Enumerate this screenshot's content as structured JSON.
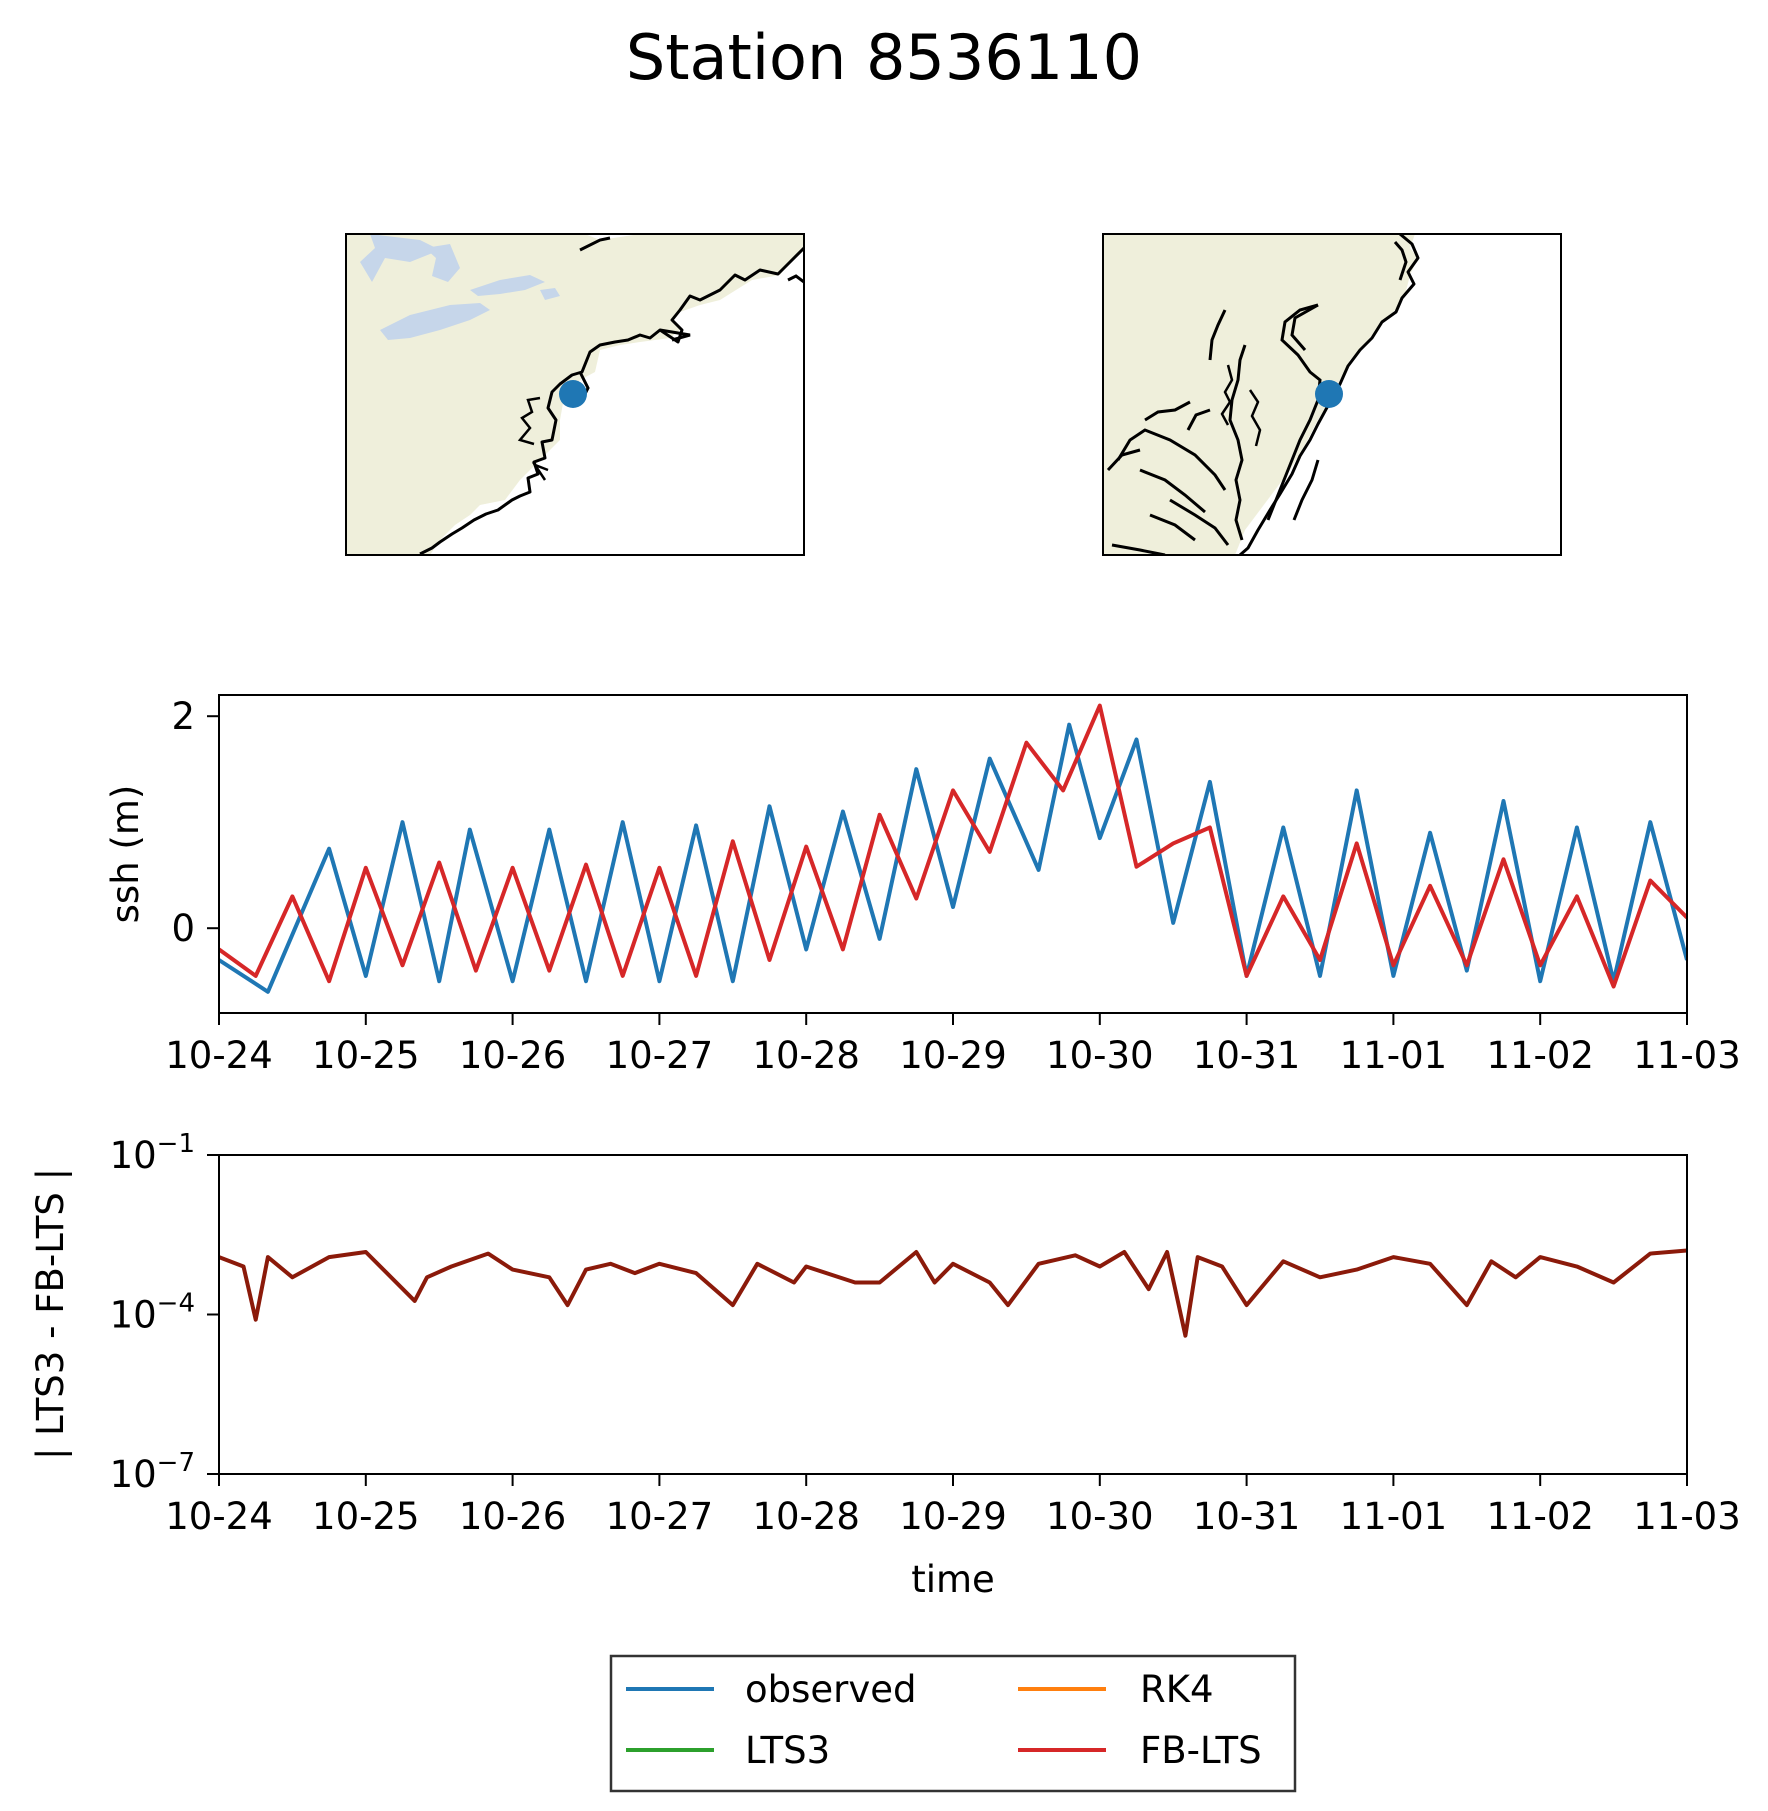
{
  "figure": {
    "title": "Station 8536110"
  },
  "colors": {
    "observed": "#1f77b4",
    "RK4": "#ff7f0e",
    "LTS3": "#2ca02c",
    "FB-LTS": "#d62728",
    "difference": "#8b1a0a",
    "land": "#efefdb",
    "lakes": "#c6d6ea"
  },
  "maps": [
    {
      "name": "overview",
      "station_marker": "blue-dot",
      "coastline": "northeastern US"
    },
    {
      "name": "zoom",
      "station_marker": "blue-dot",
      "coastline": "Delaware / Chesapeake bays"
    }
  ],
  "chart_data": [
    {
      "type": "line",
      "ylabel": "ssh (m)",
      "xlabel": "",
      "ylim": [
        -0.8,
        2.2
      ],
      "yticks": [
        0,
        2
      ],
      "ytick_labels": [
        "0",
        "2"
      ],
      "xticks": [
        "10-24",
        "10-25",
        "10-26",
        "10-27",
        "10-28",
        "10-29",
        "10-30",
        "10-31",
        "11-01",
        "11-02",
        "11-03"
      ],
      "grid": false,
      "series": [
        {
          "name": "observed",
          "color": "#1f77b4",
          "x": [
            "10-24 00:00",
            "10-24 08:00",
            "10-24 18:00",
            "10-25 00:00",
            "10-25 06:00",
            "10-25 12:00",
            "10-25 17:00",
            "10-26 00:00",
            "10-26 06:00",
            "10-26 12:00",
            "10-26 18:00",
            "10-27 00:00",
            "10-27 06:00",
            "10-27 12:00",
            "10-27 18:00",
            "10-28 00:00",
            "10-28 06:00",
            "10-28 12:00",
            "10-28 18:00",
            "10-29 00:00",
            "10-29 06:00",
            "10-29 14:00",
            "10-29 19:00",
            "10-30 00:00",
            "10-30 06:00",
            "10-30 12:00",
            "10-30 18:00",
            "10-31 00:00",
            "10-31 06:00",
            "10-31 12:00",
            "10-31 18:00",
            "11-01 00:00",
            "11-01 06:00",
            "11-01 12:00",
            "11-01 18:00",
            "11-02 00:00",
            "11-02 06:00",
            "11-02 12:00",
            "11-02 18:00",
            "11-03 00:00"
          ],
          "y": [
            -0.3,
            -0.6,
            0.75,
            -0.45,
            1.0,
            -0.5,
            0.93,
            -0.5,
            0.93,
            -0.5,
            1.0,
            -0.5,
            0.97,
            -0.5,
            1.15,
            -0.2,
            1.1,
            -0.1,
            1.5,
            0.2,
            1.6,
            0.55,
            1.92,
            0.85,
            1.78,
            0.05,
            1.38,
            -0.45,
            0.95,
            -0.45,
            1.3,
            -0.45,
            0.9,
            -0.4,
            1.2,
            -0.5,
            0.95,
            -0.5,
            1.0,
            -0.3
          ]
        },
        {
          "name": "FB-LTS",
          "color": "#d62728",
          "x": [
            "10-24 00:00",
            "10-24 06:00",
            "10-24 12:00",
            "10-24 18:00",
            "10-25 00:00",
            "10-25 06:00",
            "10-25 12:00",
            "10-25 18:00",
            "10-26 00:00",
            "10-26 06:00",
            "10-26 12:00",
            "10-26 18:00",
            "10-27 00:00",
            "10-27 06:00",
            "10-27 12:00",
            "10-27 18:00",
            "10-28 00:00",
            "10-28 06:00",
            "10-28 12:00",
            "10-28 18:00",
            "10-29 00:00",
            "10-29 06:00",
            "10-29 12:00",
            "10-29 18:00",
            "10-30 00:00",
            "10-30 06:00",
            "10-30 12:00",
            "10-30 18:00",
            "10-31 00:00",
            "10-31 06:00",
            "10-31 12:00",
            "10-31 18:00",
            "11-01 00:00",
            "11-01 06:00",
            "11-01 12:00",
            "11-01 18:00",
            "11-02 00:00",
            "11-02 06:00",
            "11-02 12:00",
            "11-02 18:00",
            "11-03 00:00"
          ],
          "y": [
            -0.2,
            -0.45,
            0.3,
            -0.5,
            0.57,
            -0.35,
            0.62,
            -0.4,
            0.57,
            -0.4,
            0.6,
            -0.45,
            0.57,
            -0.45,
            0.82,
            -0.3,
            0.77,
            -0.2,
            1.07,
            0.28,
            1.3,
            0.72,
            1.75,
            1.3,
            2.1,
            0.58,
            0.8,
            0.95,
            -0.45,
            0.3,
            -0.3,
            0.8,
            -0.35,
            0.4,
            -0.35,
            0.65,
            -0.35,
            0.3,
            -0.55,
            0.45,
            0.1
          ]
        },
        {
          "name": "RK4",
          "color": "#ff7f0e",
          "x": [],
          "y": []
        },
        {
          "name": "LTS3",
          "color": "#2ca02c",
          "x": [],
          "y": []
        }
      ]
    },
    {
      "type": "line",
      "ylabel": "| LTS3 - FB-LTS |",
      "xlabel": "time",
      "yscale": "log",
      "ylim": [
        1e-07,
        0.1
      ],
      "yticks": [
        1e-07,
        0.0001,
        0.1
      ],
      "ytick_labels": [
        {
          "base": "10",
          "exp": "−7"
        },
        {
          "base": "10",
          "exp": "−4"
        },
        {
          "base": "10",
          "exp": "−1"
        }
      ],
      "xticks": [
        "10-24",
        "10-25",
        "10-26",
        "10-27",
        "10-28",
        "10-29",
        "10-30",
        "10-31",
        "11-01",
        "11-02",
        "11-03"
      ],
      "grid": false,
      "series": [
        {
          "name": "| LTS3 - FB-LTS |",
          "color": "#8b1a0a",
          "x": [
            "10-24 00:00",
            "10-24 04:00",
            "10-24 06:00",
            "10-24 08:00",
            "10-24 12:00",
            "10-24 18:00",
            "10-25 00:00",
            "10-25 08:00",
            "10-25 10:00",
            "10-25 14:00",
            "10-25 20:00",
            "10-26 00:00",
            "10-26 06:00",
            "10-26 09:00",
            "10-26 12:00",
            "10-26 16:00",
            "10-26 20:00",
            "10-27 00:00",
            "10-27 06:00",
            "10-27 12:00",
            "10-27 16:00",
            "10-27 22:00",
            "10-28 00:00",
            "10-28 08:00",
            "10-28 12:00",
            "10-28 18:00",
            "10-28 21:00",
            "10-29 00:00",
            "10-29 06:00",
            "10-29 09:00",
            "10-29 14:00",
            "10-29 20:00",
            "10-30 00:00",
            "10-30 04:00",
            "10-30 08:00",
            "10-30 11:00",
            "10-30 14:00",
            "10-30 16:00",
            "10-30 20:00",
            "10-31 00:00",
            "10-31 06:00",
            "10-31 12:00",
            "10-31 18:00",
            "11-01 00:00",
            "11-01 06:00",
            "11-01 12:00",
            "11-01 16:00",
            "11-01 20:00",
            "11-02 00:00",
            "11-02 06:00",
            "11-02 12:00",
            "11-02 18:00",
            "11-03 00:00"
          ],
          "y": [
            0.0012,
            0.0008,
            8e-05,
            0.0012,
            0.0005,
            0.0012,
            0.0015,
            0.00018,
            0.0005,
            0.0008,
            0.0014,
            0.0007,
            0.0005,
            0.00015,
            0.0007,
            0.0009,
            0.0006,
            0.0009,
            0.0006,
            0.00015,
            0.0009,
            0.0004,
            0.0008,
            0.0004,
            0.0004,
            0.0015,
            0.0004,
            0.0009,
            0.0004,
            0.00015,
            0.0009,
            0.0013,
            0.0008,
            0.0015,
            0.0003,
            0.0015,
            4e-05,
            0.0012,
            0.0008,
            0.00015,
            0.001,
            0.0005,
            0.0007,
            0.0012,
            0.0009,
            0.00015,
            0.001,
            0.0005,
            0.0012,
            0.0008,
            0.0004,
            0.0014,
            0.0016
          ]
        }
      ]
    }
  ],
  "legend": {
    "placement": "bottom-center",
    "columns": 2,
    "items": [
      {
        "label": "observed",
        "color": "#1f77b4"
      },
      {
        "label": "RK4",
        "color": "#ff7f0e"
      },
      {
        "label": "LTS3",
        "color": "#2ca02c"
      },
      {
        "label": "FB-LTS",
        "color": "#d62728"
      }
    ]
  }
}
